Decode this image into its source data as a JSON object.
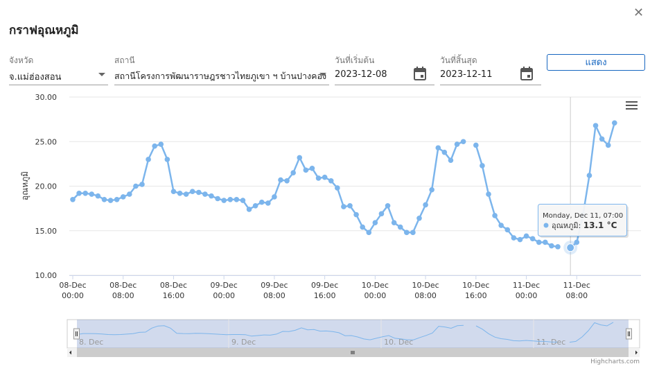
{
  "dialog": {
    "title": "กราฟอุณหภูมิ"
  },
  "form": {
    "province_label": "จังหวัด",
    "province_value": "จ.แม่ฮ่องสอน",
    "station_label": "สถานี",
    "station_value": "สถานีโครงการพัฒนาราษฎรชาวไทยภูเขา ฯ บ้านปางคอง",
    "start_label": "วันที่เริ่มต้น",
    "start_value": "2023-12-08",
    "end_label": "วันที่สิ้นสุด",
    "end_value": "2023-12-11",
    "show_label": "แสดง"
  },
  "tooltip": {
    "header": "Monday, Dec 11, 07:00",
    "series": "อุณหภูมิ",
    "value": "13.1 °C",
    "x": 79,
    "y": 13.1
  },
  "navigator": {
    "labels": [
      "8. Dec",
      "9. Dec",
      "10. Dec",
      "11. Dec"
    ]
  },
  "credits": "Highcharts.com",
  "chart_data": {
    "type": "line",
    "ylabel": "อุณหภูมิ",
    "ylim": [
      10,
      30
    ],
    "yticks": [
      "10.00",
      "15.00",
      "20.00",
      "25.00",
      "30.00"
    ],
    "xlim": [
      0,
      88
    ],
    "xticks": [
      {
        "x": 0,
        "l1": "08-Dec",
        "l2": "00:00"
      },
      {
        "x": 8,
        "l1": "08-Dec",
        "l2": "08:00"
      },
      {
        "x": 16,
        "l1": "08-Dec",
        "l2": "16:00"
      },
      {
        "x": 24,
        "l1": "09-Dec",
        "l2": "00:00"
      },
      {
        "x": 32,
        "l1": "09-Dec",
        "l2": "08:00"
      },
      {
        "x": 40,
        "l1": "09-Dec",
        "l2": "16:00"
      },
      {
        "x": 48,
        "l1": "10-Dec",
        "l2": "00:00"
      },
      {
        "x": 56,
        "l1": "10-Dec",
        "l2": "08:00"
      },
      {
        "x": 64,
        "l1": "10-Dec",
        "l2": "16:00"
      },
      {
        "x": 72,
        "l1": "11-Dec",
        "l2": "00:00"
      },
      {
        "x": 80,
        "l1": "11-Dec",
        "l2": "08:00"
      }
    ],
    "series": [
      {
        "segments": [
          [
            [
              0,
              18.5
            ],
            [
              1,
              19.2
            ],
            [
              2,
              19.2
            ],
            [
              3,
              19.1
            ],
            [
              4,
              18.9
            ],
            [
              5,
              18.5
            ],
            [
              6,
              18.4
            ],
            [
              7,
              18.5
            ],
            [
              8,
              18.8
            ],
            [
              9,
              19.1
            ],
            [
              10,
              20.0
            ],
            [
              11,
              20.2
            ],
            [
              12,
              23.0
            ],
            [
              13,
              24.5
            ],
            [
              14,
              24.7
            ],
            [
              15,
              23.0
            ],
            [
              16,
              19.4
            ],
            [
              17,
              19.2
            ],
            [
              18,
              19.1
            ],
            [
              19,
              19.4
            ],
            [
              20,
              19.3
            ],
            [
              21,
              19.1
            ],
            [
              22,
              18.9
            ],
            [
              23,
              18.6
            ],
            [
              24,
              18.4
            ],
            [
              25,
              18.5
            ],
            [
              26,
              18.5
            ],
            [
              27,
              18.4
            ],
            [
              28,
              17.4
            ],
            [
              29,
              17.8
            ],
            [
              30,
              18.2
            ],
            [
              31,
              18.1
            ],
            [
              32,
              18.8
            ],
            [
              33,
              20.7
            ],
            [
              34,
              20.6
            ],
            [
              35,
              21.5
            ],
            [
              36,
              23.2
            ],
            [
              37,
              21.8
            ],
            [
              38,
              22.0
            ],
            [
              39,
              20.9
            ],
            [
              40,
              21.0
            ],
            [
              41,
              20.6
            ],
            [
              42,
              19.8
            ],
            [
              43,
              17.7
            ],
            [
              44,
              17.8
            ],
            [
              45,
              16.8
            ],
            [
              46,
              15.4
            ],
            [
              47,
              14.8
            ],
            [
              48,
              15.9
            ],
            [
              49,
              16.9
            ],
            [
              50,
              17.8
            ],
            [
              51,
              15.9
            ],
            [
              52,
              15.4
            ],
            [
              53,
              14.8
            ],
            [
              54,
              14.8
            ],
            [
              55,
              16.4
            ],
            [
              56,
              17.9
            ],
            [
              57,
              19.6
            ],
            [
              58,
              24.3
            ],
            [
              59,
              23.8
            ],
            [
              60,
              22.9
            ],
            [
              61,
              24.7
            ],
            [
              62,
              25.0
            ]
          ],
          [
            [
              64,
              24.6
            ],
            [
              65,
              22.3
            ],
            [
              66,
              19.1
            ],
            [
              67,
              16.7
            ],
            [
              68,
              15.6
            ],
            [
              69,
              15.1
            ],
            [
              70,
              14.2
            ],
            [
              71,
              14.0
            ],
            [
              72,
              14.4
            ],
            [
              73,
              14.1
            ],
            [
              74,
              13.7
            ],
            [
              75,
              13.7
            ],
            [
              76,
              13.3
            ],
            [
              77,
              13.2
            ]
          ],
          [
            [
              79,
              13.1
            ],
            [
              80,
              13.7
            ],
            [
              81,
              16.8
            ],
            [
              82,
              21.2
            ],
            [
              83,
              26.8
            ],
            [
              84,
              25.3
            ],
            [
              85,
              24.6
            ],
            [
              86,
              27.1
            ]
          ]
        ]
      }
    ]
  }
}
